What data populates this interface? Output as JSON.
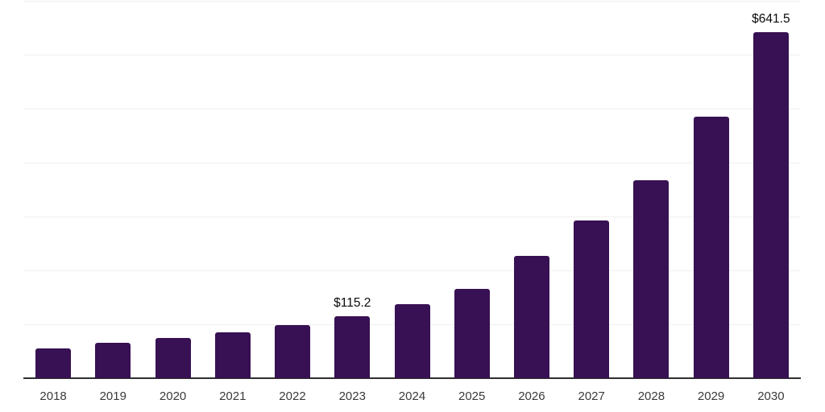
{
  "chart_data": {
    "type": "bar",
    "title": "",
    "xlabel": "",
    "ylabel": "",
    "categories": [
      "2018",
      "2019",
      "2020",
      "2021",
      "2022",
      "2023",
      "2024",
      "2025",
      "2026",
      "2027",
      "2028",
      "2029",
      "2030"
    ],
    "values": [
      54.6,
      65.6,
      74.6,
      85.5,
      98.5,
      115.2,
      137.8,
      165.7,
      226.4,
      292.1,
      366.7,
      485.6,
      641.5
    ],
    "ylim": [
      0,
      700
    ],
    "grid_step": 100,
    "grid": "horizontal-only",
    "legend_position": "none",
    "y_axis_tick_labels_visible": false,
    "annotations": [
      {
        "category": "2023",
        "text": "$115.2"
      },
      {
        "category": "2030",
        "text": "$641.5"
      }
    ],
    "colors": {
      "bar": "#371153",
      "grid": "#f0f0f0",
      "axis": "#2e2e2e",
      "tick_label": "#3a3a3a",
      "annotation": "#0a0a0a",
      "background": "#ffffff"
    }
  }
}
